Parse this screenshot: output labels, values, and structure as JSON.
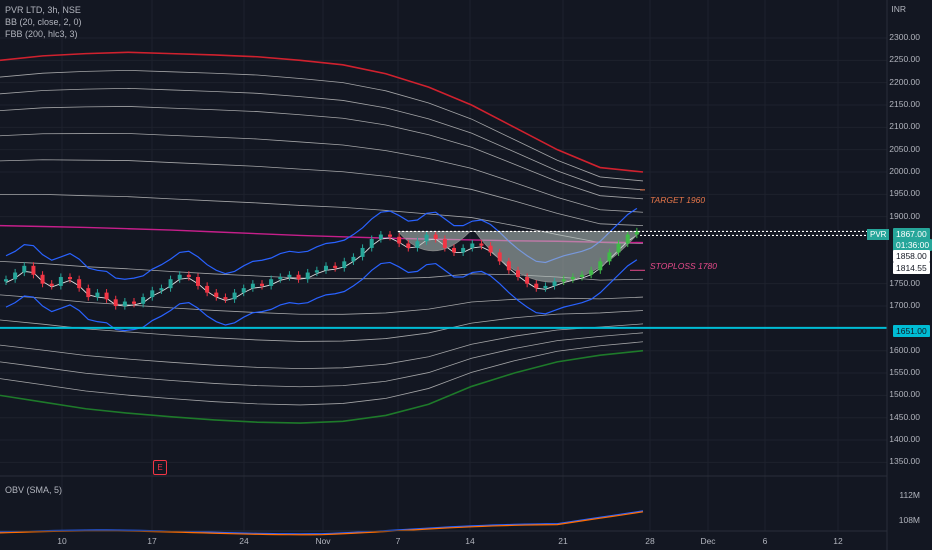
{
  "legend": {
    "title": "PVR LTD, 3h, NSE",
    "bb": "BB (20, close, 2, 0)",
    "fbb": "FBB (200, hlc3, 3)",
    "obv": "OBV (SMA, 5)"
  },
  "axis": {
    "currency": "INR",
    "y_ticks": [
      "2300.00",
      "2250.00",
      "2200.00",
      "2150.00",
      "2100.00",
      "2050.00",
      "2000.00",
      "1950.00",
      "1900.00",
      "1750.00",
      "1700.00",
      "1600.00",
      "1550.00",
      "1500.00",
      "1450.00",
      "1400.00",
      "1350.00"
    ],
    "y_tick_values": [
      2300,
      2250,
      2200,
      2150,
      2100,
      2050,
      2000,
      1950,
      1900,
      1750,
      1700,
      1600,
      1550,
      1500,
      1450,
      1400,
      1350
    ],
    "x_ticks": [
      "10",
      "17",
      "24",
      "Nov",
      "7",
      "14",
      "21",
      "28",
      "Dec",
      "6",
      "12"
    ],
    "obv_ticks": [
      "112M",
      "108M"
    ],
    "obv_tick_values": [
      112,
      108
    ]
  },
  "price_tags": {
    "symbol": "PVR",
    "last": "1867.00",
    "countdown": "01:36:00",
    "level_1858": "1858.00",
    "level_1814": "1814.55",
    "support": "1651.00"
  },
  "annotations": {
    "target": "TARGET 1960",
    "stoploss": "STOPLOSS 1780"
  },
  "earnings_flag": "E",
  "colors": {
    "background": "#131722",
    "up": "#26a69a",
    "up_bright": "#3fbb47",
    "down": "#f23645",
    "bb_band": "#2962ff",
    "fbb_upper": "#d0212e",
    "fbb_lower": "#1e7a2a",
    "fbb_basis": "#c61f8b",
    "support": "#00bcd4",
    "obv": "#2962ff",
    "obv_sma": "#ff6d00",
    "target_text": "#e8774a",
    "stoploss_text": "#e64a8a"
  },
  "chart_data": {
    "type": "candlestick",
    "price_range": [
      1320,
      2340
    ],
    "x_range_date_indices": [
      0,
      80
    ],
    "levels": {
      "target": 1960,
      "stoploss": 1780,
      "last": 1867,
      "level_1858": 1858,
      "level_1814": 1814.55,
      "support": 1651
    },
    "ohlc_close_approx": [
      1760,
      1775,
      1790,
      1770,
      1750,
      1745,
      1765,
      1760,
      1740,
      1720,
      1730,
      1715,
      1700,
      1710,
      1705,
      1720,
      1735,
      1740,
      1760,
      1770,
      1765,
      1745,
      1730,
      1720,
      1715,
      1730,
      1740,
      1750,
      1745,
      1760,
      1765,
      1770,
      1760,
      1775,
      1780,
      1790,
      1785,
      1800,
      1810,
      1830,
      1850,
      1860,
      1855,
      1840,
      1830,
      1845,
      1860,
      1850,
      1830,
      1820,
      1830,
      1840,
      1835,
      1820,
      1800,
      1780,
      1765,
      1750,
      1740,
      1745,
      1755,
      1760,
      1765,
      1770,
      1780,
      1800,
      1820,
      1840,
      1860,
      1867
    ],
    "fbb_upper_approx": [
      2250,
      2260,
      2265,
      2268,
      2265,
      2262,
      2258,
      2250,
      2240,
      2220,
      2190,
      2150,
      2100,
      2050,
      2010,
      2000
    ],
    "fbb_lower_approx": [
      1500,
      1485,
      1470,
      1460,
      1452,
      1445,
      1440,
      1438,
      1442,
      1455,
      1480,
      1520,
      1550,
      1575,
      1590,
      1600
    ],
    "obv_range_millions": [
      106,
      114
    ]
  }
}
